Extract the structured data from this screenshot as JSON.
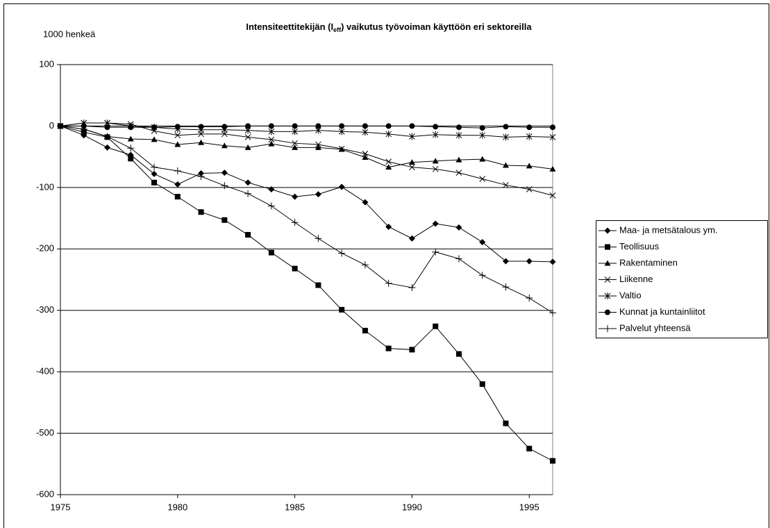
{
  "chart_data": {
    "type": "line",
    "title_parts": [
      "Intensiteettitekijän (I",
      "eff",
      ") vaikutus työvoiman käyttöön eri sektoreilla"
    ],
    "y_label": "1000 henkeä",
    "x": [
      1975,
      1976,
      1977,
      1978,
      1979,
      1980,
      1981,
      1982,
      1983,
      1984,
      1985,
      1986,
      1987,
      1988,
      1989,
      1990,
      1991,
      1992,
      1993,
      1994,
      1995,
      1996
    ],
    "xlim": [
      1975,
      1996
    ],
    "xticks": [
      1975,
      1980,
      1985,
      1990,
      1995
    ],
    "ylim": [
      -600,
      100
    ],
    "yticks": [
      -600,
      -500,
      -400,
      -300,
      -200,
      -100,
      0,
      100
    ],
    "grid": true,
    "legend": "right",
    "series": [
      {
        "name": "Maa- ja metsätalous ym.",
        "color": "#000000",
        "marker": "diamond",
        "values": [
          0,
          -15,
          -35,
          -47,
          -78,
          -95,
          -77,
          -76,
          -92,
          -103,
          -115,
          -111,
          -99,
          -124,
          -164,
          -183,
          -159,
          -165,
          -189,
          -220,
          -220,
          -221
        ]
      },
      {
        "name": "Teollisuus",
        "color": "#000000",
        "marker": "square",
        "values": [
          0,
          -10,
          -18,
          -53,
          -92,
          -115,
          -140,
          -153,
          -177,
          -206,
          -232,
          -259,
          -299,
          -333,
          -362,
          -364,
          -326,
          -371,
          -420,
          -484,
          -525,
          -545
        ]
      },
      {
        "name": "Rakentaminen",
        "color": "#000000",
        "marker": "triangle",
        "values": [
          0,
          -5,
          -17,
          -21,
          -22,
          -30,
          -27,
          -32,
          -35,
          -29,
          -35,
          -35,
          -38,
          -51,
          -67,
          -59,
          -57,
          -55,
          -54,
          -64,
          -65,
          -70
        ]
      },
      {
        "name": "Liikenne",
        "color": "#000000",
        "marker": "x",
        "values": [
          0,
          5,
          5,
          3,
          -8,
          -15,
          -13,
          -13,
          -18,
          -22,
          -28,
          -30,
          -37,
          -45,
          -58,
          -67,
          -70,
          -76,
          -86,
          -96,
          -103,
          -113
        ]
      },
      {
        "name": "Valtio",
        "color": "#000000",
        "marker": "asterisk",
        "values": [
          0,
          5,
          5,
          0,
          -2,
          -5,
          -6,
          -6,
          -7,
          -9,
          -9,
          -7,
          -9,
          -10,
          -13,
          -17,
          -14,
          -15,
          -15,
          -18,
          -17,
          -18
        ]
      },
      {
        "name": "Kunnat ja kuntainliitot",
        "color": "#000000",
        "marker": "circle",
        "values": [
          0,
          0,
          -2,
          -2,
          -2,
          -1,
          -1,
          -1,
          0,
          0,
          0,
          0,
          0,
          0,
          0,
          0,
          -1,
          -2,
          -3,
          -1,
          -2,
          -2
        ]
      },
      {
        "name": "Palvelut yhteensä",
        "color": "#000000",
        "marker": "plus",
        "values": [
          0,
          -5,
          -17,
          -36,
          -67,
          -73,
          -82,
          -97,
          -110,
          -130,
          -157,
          -183,
          -207,
          -226,
          -256,
          -263,
          -205,
          -216,
          -243,
          -262,
          -280,
          -304
        ]
      }
    ]
  }
}
